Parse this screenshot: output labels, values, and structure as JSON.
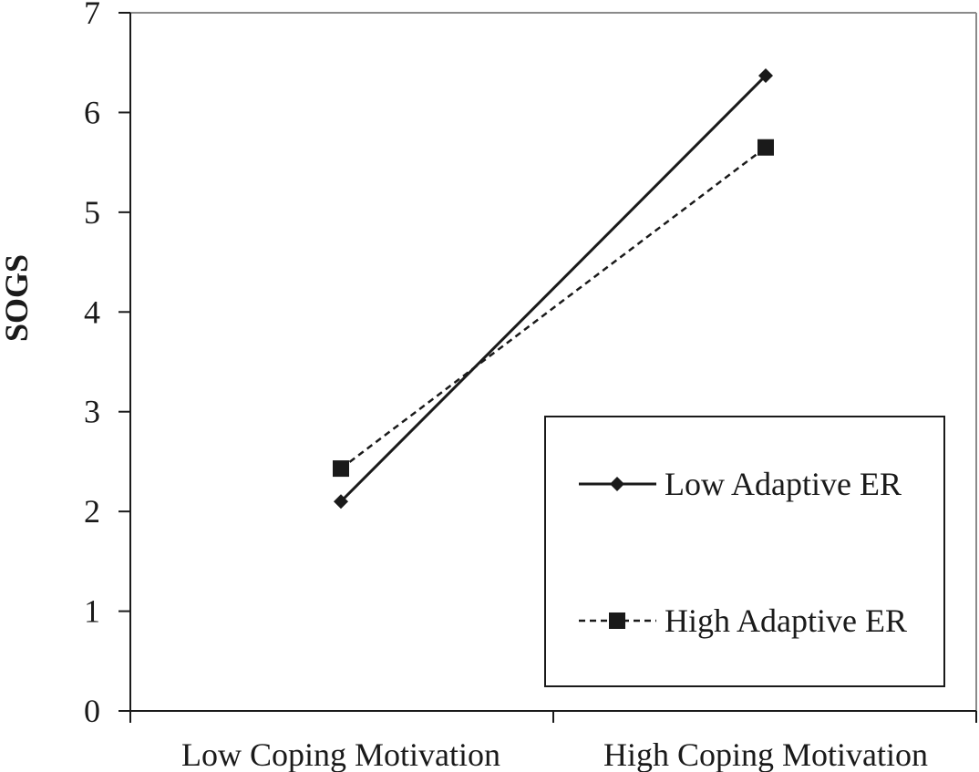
{
  "chart_data": {
    "type": "line",
    "title": "",
    "xlabel": "",
    "ylabel": "SOGS",
    "categories": [
      "Low Coping Motivation",
      "High Coping Motivation"
    ],
    "ylim": [
      0,
      7
    ],
    "yticks": [
      0,
      1,
      2,
      3,
      4,
      5,
      6,
      7
    ],
    "grid": false,
    "legend_position": "bottom-right",
    "series": [
      {
        "name": "Low Adaptive ER",
        "values": [
          2.1,
          6.37
        ],
        "line_style": "solid",
        "marker": "diamond",
        "color": "#1a1a1a"
      },
      {
        "name": "High Adaptive ER",
        "values": [
          2.43,
          5.65
        ],
        "line_style": "dashed",
        "marker": "square",
        "color": "#1a1a1a"
      }
    ]
  }
}
